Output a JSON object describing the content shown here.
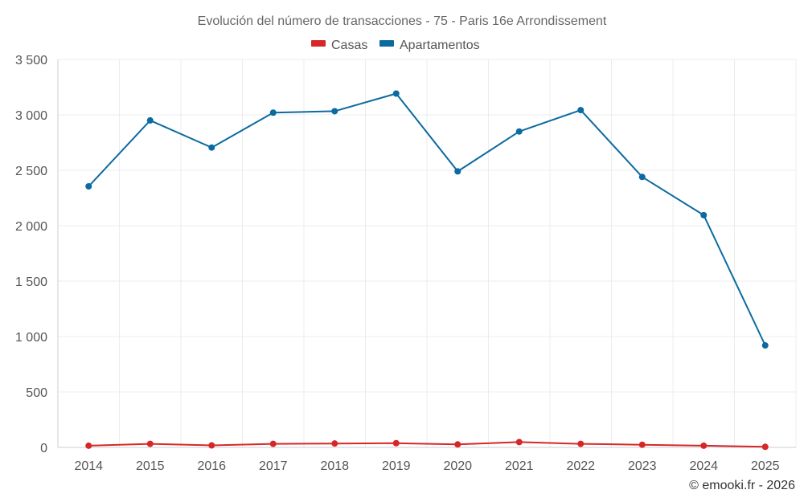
{
  "chart_data": {
    "type": "line",
    "title": "Evolución del número de transacciones - 75 - Paris 16e Arrondissement",
    "categories": [
      "2014",
      "2015",
      "2016",
      "2017",
      "2018",
      "2019",
      "2020",
      "2021",
      "2022",
      "2023",
      "2024",
      "2025"
    ],
    "series": [
      {
        "name": "Casas",
        "color": "#d62728",
        "values": [
          15,
          32,
          18,
          32,
          35,
          38,
          27,
          48,
          32,
          24,
          15,
          5
        ]
      },
      {
        "name": "Apartamentos",
        "color": "#0b6aa0",
        "values": [
          2355,
          2950,
          2705,
          3020,
          3033,
          3192,
          2490,
          2850,
          3043,
          2440,
          2095,
          920
        ]
      }
    ],
    "yticks": [
      "0",
      "500",
      "1 000",
      "1 500",
      "2 000",
      "2 500",
      "3 000",
      "3 500"
    ],
    "ylim": [
      0,
      3500
    ],
    "xlabel": "",
    "ylabel": "",
    "legend_position": "top-center",
    "grid": true
  },
  "credit": "© emooki.fr - 2026"
}
